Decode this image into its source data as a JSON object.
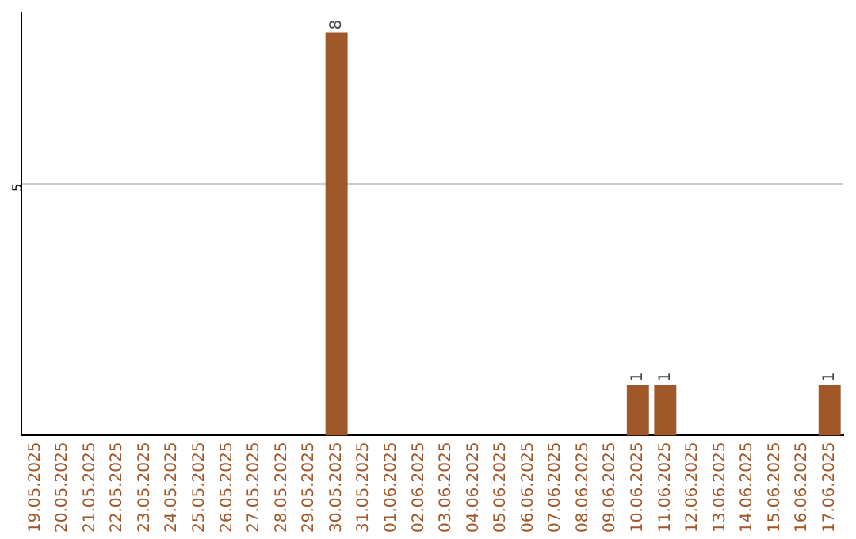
{
  "chart_data": {
    "type": "bar",
    "categories": [
      "19.05.2025",
      "20.05.2025",
      "21.05.2025",
      "22.05.2025",
      "23.05.2025",
      "24.05.2025",
      "25.05.2025",
      "26.05.2025",
      "27.05.2025",
      "28.05.2025",
      "29.05.2025",
      "30.05.2025",
      "31.05.2025",
      "01.06.2025",
      "02.06.2025",
      "03.06.2025",
      "04.06.2025",
      "05.06.2025",
      "06.06.2025",
      "07.06.2025",
      "08.06.2025",
      "09.06.2025",
      "10.06.2025",
      "11.06.2025",
      "12.06.2025",
      "13.06.2025",
      "14.06.2025",
      "15.06.2025",
      "16.06.2025",
      "17.06.2025"
    ],
    "values": [
      0,
      0,
      0,
      0,
      0,
      0,
      0,
      0,
      0,
      0,
      0,
      8,
      0,
      0,
      0,
      0,
      0,
      0,
      0,
      0,
      0,
      0,
      1,
      1,
      0,
      0,
      0,
      0,
      0,
      1
    ],
    "color": "#a0572a",
    "value_labels": [
      null,
      null,
      null,
      null,
      null,
      null,
      null,
      null,
      null,
      null,
      null,
      "8",
      null,
      null,
      null,
      null,
      null,
      null,
      null,
      null,
      null,
      null,
      "1",
      "1",
      null,
      null,
      null,
      null,
      null,
      "1"
    ],
    "ylim": [
      0,
      8.4
    ],
    "yticks": [
      5
    ],
    "grid": "y"
  }
}
